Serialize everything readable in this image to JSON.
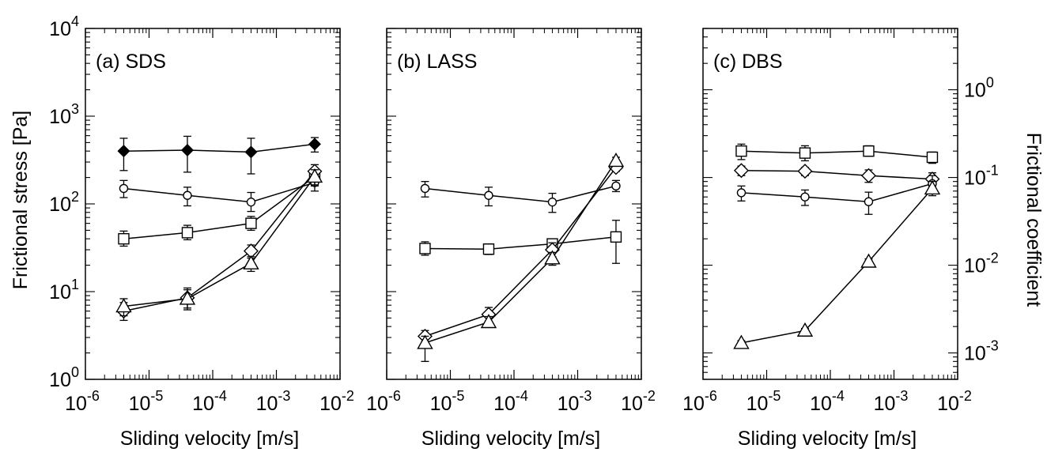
{
  "figure": {
    "xlabel": "Sliding velocity [m/s]",
    "ylabel_left": "Frictional stress [Pa]",
    "ylabel_right": "Frictional coefficient",
    "exp_base": "10"
  },
  "chart_data": [
    {
      "type": "scatter",
      "title": "(a) SDS",
      "xlabel": "Sliding velocity [m/s]",
      "ylabel": "Frictional stress [Pa]",
      "x_scale": "log",
      "y_scale": "log",
      "xlim": [
        1e-06,
        0.01
      ],
      "ylim": [
        1,
        10000
      ],
      "x_ticks": [
        "10^-6",
        "10^-5",
        "10^-4",
        "10^-3",
        "10^-2"
      ],
      "y_ticks": [
        "10^0",
        "10^1",
        "10^2",
        "10^3",
        "10^4"
      ],
      "series": [
        {
          "marker": "filled-diamond",
          "x": [
            4e-06,
            4e-05,
            0.0004,
            0.004
          ],
          "y": [
            400,
            410,
            390,
            480
          ],
          "err_low": [
            240,
            230,
            220,
            390
          ],
          "err_high": [
            560,
            590,
            560,
            570
          ]
        },
        {
          "marker": "circle",
          "x": [
            4e-06,
            4e-05,
            0.0004,
            0.004
          ],
          "y": [
            150,
            125,
            105,
            175
          ],
          "err_low": [
            118,
            95,
            82,
            140
          ],
          "err_high": [
            185,
            155,
            135,
            205
          ]
        },
        {
          "marker": "square",
          "x": [
            4e-06,
            4e-05,
            0.0004,
            0.004
          ],
          "y": [
            40,
            47,
            60,
            205
          ],
          "err_low": [
            33,
            39,
            50,
            160
          ],
          "err_high": [
            49,
            57,
            72,
            250
          ]
        },
        {
          "marker": "diamond",
          "x": [
            4e-06,
            4e-05,
            0.0004,
            0.004
          ],
          "y": [
            6,
            8.5,
            29,
            235
          ],
          "err_low": [
            4.7,
            6.5,
            24,
            190
          ],
          "err_high": [
            7.5,
            11,
            34,
            280
          ]
        },
        {
          "marker": "triangle",
          "x": [
            4e-06,
            4e-05,
            0.0004,
            0.004
          ],
          "y": [
            6.8,
            8.3,
            21,
            205
          ],
          "err_low": [
            5.3,
            6.2,
            17,
            165
          ],
          "err_high": [
            8.3,
            10.5,
            25,
            245
          ]
        }
      ]
    },
    {
      "type": "scatter",
      "title": "(b) LASS",
      "xlabel": "Sliding velocity [m/s]",
      "x_scale": "log",
      "y_scale": "log",
      "xlim": [
        1e-06,
        0.01
      ],
      "ylim": [
        1,
        10000
      ],
      "x_ticks": [
        "10^-6",
        "10^-5",
        "10^-4",
        "10^-3",
        "10^-2"
      ],
      "series": [
        {
          "marker": "circle",
          "x": [
            4e-06,
            4e-05,
            0.0004,
            0.004
          ],
          "y": [
            150,
            125,
            105,
            160
          ],
          "err_low": [
            120,
            95,
            80,
            138
          ],
          "err_high": [
            180,
            155,
            132,
            185
          ]
        },
        {
          "marker": "square",
          "x": [
            4e-06,
            4e-05,
            0.0004,
            0.004
          ],
          "y": [
            31,
            30.5,
            35,
            42
          ],
          "err_low": [
            26,
            26.5,
            31,
            21
          ],
          "err_high": [
            37,
            35,
            40,
            65
          ]
        },
        {
          "marker": "diamond",
          "x": [
            4e-06,
            4e-05,
            0.0004,
            0.004
          ],
          "y": [
            3.1,
            5.5,
            30,
            260
          ],
          "err_low": [
            2.7,
            4.6,
            25,
            235
          ],
          "err_high": [
            3.6,
            6.6,
            36,
            290
          ]
        },
        {
          "marker": "triangle",
          "x": [
            4e-06,
            4e-05,
            0.0004,
            0.004
          ],
          "y": [
            2.6,
            4.5,
            24,
            310
          ],
          "err_low": [
            1.6,
            3.9,
            20,
            280
          ],
          "err_high": [
            3.1,
            5.2,
            28,
            340
          ]
        }
      ]
    },
    {
      "type": "scatter",
      "title": "(c) DBS",
      "xlabel": "Sliding velocity [m/s]",
      "ylabel": "Frictional coefficient",
      "x_scale": "log",
      "y_scale": "log",
      "xlim": [
        1e-06,
        0.01
      ],
      "ylim": [
        0.0005,
        5
      ],
      "x_ticks": [
        "10^-6",
        "10^-5",
        "10^-4",
        "10^-3",
        "10^-2"
      ],
      "y_ticks": [
        "10^-3",
        "10^-2",
        "10^-1",
        "10^0"
      ],
      "series": [
        {
          "marker": "square",
          "x": [
            4e-06,
            4e-05,
            0.0004,
            0.004
          ],
          "y": [
            0.2,
            0.19,
            0.2,
            0.17
          ],
          "err_low": [
            0.16,
            0.155,
            0.175,
            0.145
          ],
          "err_high": [
            0.24,
            0.23,
            0.23,
            0.195
          ]
        },
        {
          "marker": "diamond",
          "x": [
            4e-06,
            4e-05,
            0.0004,
            0.004
          ],
          "y": [
            0.12,
            0.118,
            0.105,
            0.096
          ],
          "err_low": [
            0.105,
            0.105,
            0.088,
            0.08
          ],
          "err_high": [
            0.135,
            0.13,
            0.122,
            0.113
          ]
        },
        {
          "marker": "circle",
          "x": [
            4e-06,
            4e-05,
            0.0004,
            0.004
          ],
          "y": [
            0.067,
            0.06,
            0.053,
            0.085
          ],
          "err_low": [
            0.054,
            0.048,
            0.038,
            0.065
          ],
          "err_high": [
            0.08,
            0.072,
            0.068,
            0.105
          ]
        },
        {
          "marker": "triangle",
          "x": [
            4e-06,
            4e-05,
            0.0004,
            0.004
          ],
          "y": [
            0.0013,
            0.0018,
            0.011,
            0.075
          ],
          "err_low": [
            0.00122,
            0.0017,
            0.0102,
            0.062
          ],
          "err_high": [
            0.00138,
            0.0019,
            0.0118,
            0.09
          ]
        }
      ]
    }
  ]
}
